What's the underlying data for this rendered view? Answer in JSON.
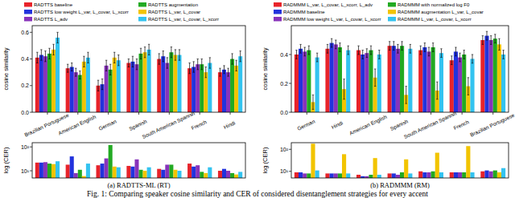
{
  "chart_data": [
    {
      "type": "bar",
      "y_label": "cosine similarity",
      "categories": [
        "Brazilian Portuguese",
        "American English",
        "German",
        "Spanish",
        "South American Spanish",
        "French",
        "Hindi"
      ],
      "ylim": [
        0,
        0.65
      ],
      "yticks": [
        {
          "value": 0,
          "label": "0.0"
        },
        {
          "value": 0.2,
          "label": "0.2"
        },
        {
          "value": 0.4,
          "label": "0.4"
        },
        {
          "value": 0.6,
          "label": "0.6"
        }
      ],
      "series": [
        {
          "name": "RADTTS baseline",
          "color": "#e8232a",
          "values": [
            0.41,
            0.33,
            0.2,
            0.37,
            0.4,
            0.33,
            0.3
          ],
          "errors": [
            0.04,
            0.03,
            0.04,
            0.03,
            0.04,
            0.04,
            0.03
          ]
        },
        {
          "name": "RADTTS low weight L_var, L_covar, L_xcorr",
          "color": "#2233dd",
          "values": [
            0.43,
            0.34,
            0.21,
            0.38,
            0.42,
            0.34,
            0.32
          ],
          "errors": [
            0.04,
            0.03,
            0.04,
            0.04,
            0.04,
            0.04,
            0.03
          ]
        },
        {
          "name": "RADTTS L_adv",
          "color": "#8833bb",
          "values": [
            0.42,
            0.3,
            0.35,
            0.36,
            0.37,
            0.36,
            0.3
          ],
          "errors": [
            0.04,
            0.03,
            0.04,
            0.04,
            0.04,
            0.04,
            0.03
          ]
        },
        {
          "name": "RADTTS augmentation",
          "color": "#22aa22",
          "values": [
            0.44,
            0.28,
            0.32,
            0.44,
            0.45,
            0.36,
            0.4
          ],
          "errors": [
            0.04,
            0.03,
            0.04,
            0.04,
            0.04,
            0.04,
            0.04
          ]
        },
        {
          "name": "RADTTS L_var, L_covar",
          "color": "#f2c400",
          "values": [
            0.47,
            0.38,
            0.41,
            0.45,
            0.43,
            0.3,
            0.35
          ],
          "errors": [
            0.04,
            0.04,
            0.04,
            0.04,
            0.04,
            0.04,
            0.04
          ]
        },
        {
          "name": "RADTTS L_var, L_covar, L_xcorr",
          "color": "#33c3f0",
          "values": [
            0.56,
            0.41,
            0.39,
            0.47,
            0.43,
            0.37,
            0.42
          ],
          "errors": [
            0.04,
            0.04,
            0.04,
            0.04,
            0.04,
            0.04,
            0.04
          ]
        }
      ]
    },
    {
      "type": "bar",
      "y_label": "log (CER)",
      "log": "y",
      "tick_labels": "y",
      "categories": [
        "Brazilian Portuguese",
        "American English",
        "German",
        "Spanish",
        "South American Spanish",
        "French",
        "Hindi"
      ],
      "ylim": [
        5,
        150
      ],
      "yticks": [
        {
          "value": 10,
          "label": "10¹"
        },
        {
          "value": 100,
          "label": "10²"
        }
      ],
      "series": [
        {
          "color": "#e8232a",
          "values": [
            22,
            18,
            17,
            16,
            12,
            20,
            10
          ]
        },
        {
          "color": "#2233dd",
          "values": [
            22,
            40,
            20,
            15,
            11,
            15,
            12
          ]
        },
        {
          "color": "#8833bb",
          "values": [
            23,
            8,
            33,
            30,
            18,
            17,
            10
          ]
        },
        {
          "color": "#22aa22",
          "values": [
            20,
            11,
            120,
            11,
            18,
            9,
            8
          ]
        },
        {
          "color": "#f2c400",
          "values": [
            19,
            6,
            15,
            10,
            11,
            8,
            7
          ]
        },
        {
          "color": "#33c3f0",
          "values": [
            25,
            20,
            14,
            14,
            10,
            14,
            9
          ]
        }
      ]
    },
    {
      "type": "bar",
      "y_label": "cosine similarity",
      "categories": [
        "German",
        "Hindi",
        "American English",
        "Spanish",
        "South American Spanish",
        "French",
        "Brazilian Portuguese"
      ],
      "ylim": [
        0,
        0.6
      ],
      "yticks": [
        {
          "value": 0,
          "label": "0.0"
        },
        {
          "value": 0.2,
          "label": "0.2"
        },
        {
          "value": 0.4,
          "label": "0.4"
        }
      ],
      "series": [
        {
          "name": "RADMMM L_var, L_covar, L_xcorr, L_adv",
          "color": "#e8232a",
          "values": [
            0.4,
            0.44,
            0.43,
            0.46,
            0.43,
            0.36,
            0.5
          ],
          "errors": [
            0.03,
            0.03,
            0.03,
            0.03,
            0.03,
            0.03,
            0.03
          ]
        },
        {
          "name": "RADMMM baseline",
          "color": "#2233dd",
          "values": [
            0.44,
            0.48,
            0.4,
            0.46,
            0.45,
            0.42,
            0.53
          ],
          "errors": [
            0.03,
            0.03,
            0.03,
            0.03,
            0.03,
            0.03,
            0.03
          ]
        },
        {
          "name": "RADMMM low weight L_var, L_covar, L_xcorr",
          "color": "#8833bb",
          "values": [
            0.42,
            0.47,
            0.41,
            0.44,
            0.42,
            0.38,
            0.5
          ],
          "errors": [
            0.03,
            0.03,
            0.03,
            0.03,
            0.03,
            0.03,
            0.03
          ]
        },
        {
          "name": "RADMMM with normalized log F0",
          "color": "#22aa22",
          "values": [
            0.43,
            0.45,
            0.43,
            0.46,
            0.45,
            0.4,
            0.51
          ],
          "errors": [
            0.03,
            0.03,
            0.03,
            0.03,
            0.03,
            0.03,
            0.03
          ]
        },
        {
          "name": "RADMMM augmentation L_var, L_covar",
          "color": "#f2c400",
          "values": [
            0.07,
            0.16,
            0.24,
            0.12,
            0.15,
            0.18,
            0.47
          ],
          "errors": [
            0.05,
            0.07,
            0.06,
            0.06,
            0.06,
            0.06,
            0.04
          ]
        },
        {
          "name": "RADMMM L_var, L_covar, L_xcorr",
          "color": "#33c3f0",
          "values": [
            0.38,
            0.43,
            0.4,
            0.44,
            0.41,
            0.37,
            0.4
          ],
          "errors": [
            0.03,
            0.03,
            0.03,
            0.03,
            0.03,
            0.03,
            0.03
          ]
        }
      ]
    },
    {
      "type": "bar",
      "y_label": "log (CER)",
      "log": "y",
      "tick_labels": "y",
      "categories": [
        "German",
        "Hindi",
        "American English",
        "Spanish",
        "South American Spanish",
        "French",
        "Brazilian Portuguese"
      ],
      "ylim": [
        5,
        200
      ],
      "yticks": [
        {
          "value": 10,
          "label": "10¹"
        },
        {
          "value": 100,
          "label": "10²"
        }
      ],
      "series": [
        {
          "color": "#e8232a",
          "values": [
            9,
            8,
            7,
            8,
            10,
            9,
            10
          ]
        },
        {
          "color": "#2233dd",
          "values": [
            9,
            8,
            6,
            8,
            9,
            9,
            11
          ]
        },
        {
          "color": "#8833bb",
          "values": [
            8,
            8,
            6,
            7,
            9,
            9,
            10
          ]
        },
        {
          "color": "#22aa22",
          "values": [
            8,
            8,
            7,
            9,
            10,
            9,
            11
          ]
        },
        {
          "color": "#f2c400",
          "values": [
            180,
            60,
            40,
            35,
            70,
            140,
            9
          ]
        },
        {
          "color": "#33c3f0",
          "values": [
            11,
            8,
            7,
            8,
            9,
            9,
            14
          ]
        }
      ]
    }
  ],
  "panel_captions": [
    "(a) RADTTS-ML (RT)",
    "(b) RADMMM (RM)"
  ],
  "caption": "Fig. 1: Comparing speaker cosine similarity and CER of considered disentanglement strategies for every accent"
}
